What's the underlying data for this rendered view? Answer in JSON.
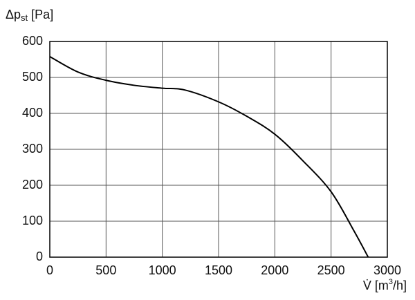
{
  "chart_data": {
    "type": "line",
    "ylabel": [
      "Δp",
      "st",
      "[Pa]"
    ],
    "xlabel": [
      "V̇ [m",
      "3",
      "/h]"
    ],
    "x": [
      0,
      250,
      500,
      750,
      1000,
      1200,
      1500,
      1750,
      2000,
      2250,
      2500,
      2700,
      2830
    ],
    "values": [
      558,
      515,
      492,
      478,
      470,
      465,
      432,
      392,
      342,
      268,
      182,
      75,
      0
    ],
    "color": "#000000",
    "xlim": [
      0,
      3000
    ],
    "xticks": [
      0,
      500,
      1000,
      1500,
      2000,
      2500,
      3000
    ],
    "ylim": [
      0,
      600
    ],
    "yticks": [
      0,
      100,
      200,
      300,
      400,
      500,
      600
    ],
    "grid": true
  }
}
